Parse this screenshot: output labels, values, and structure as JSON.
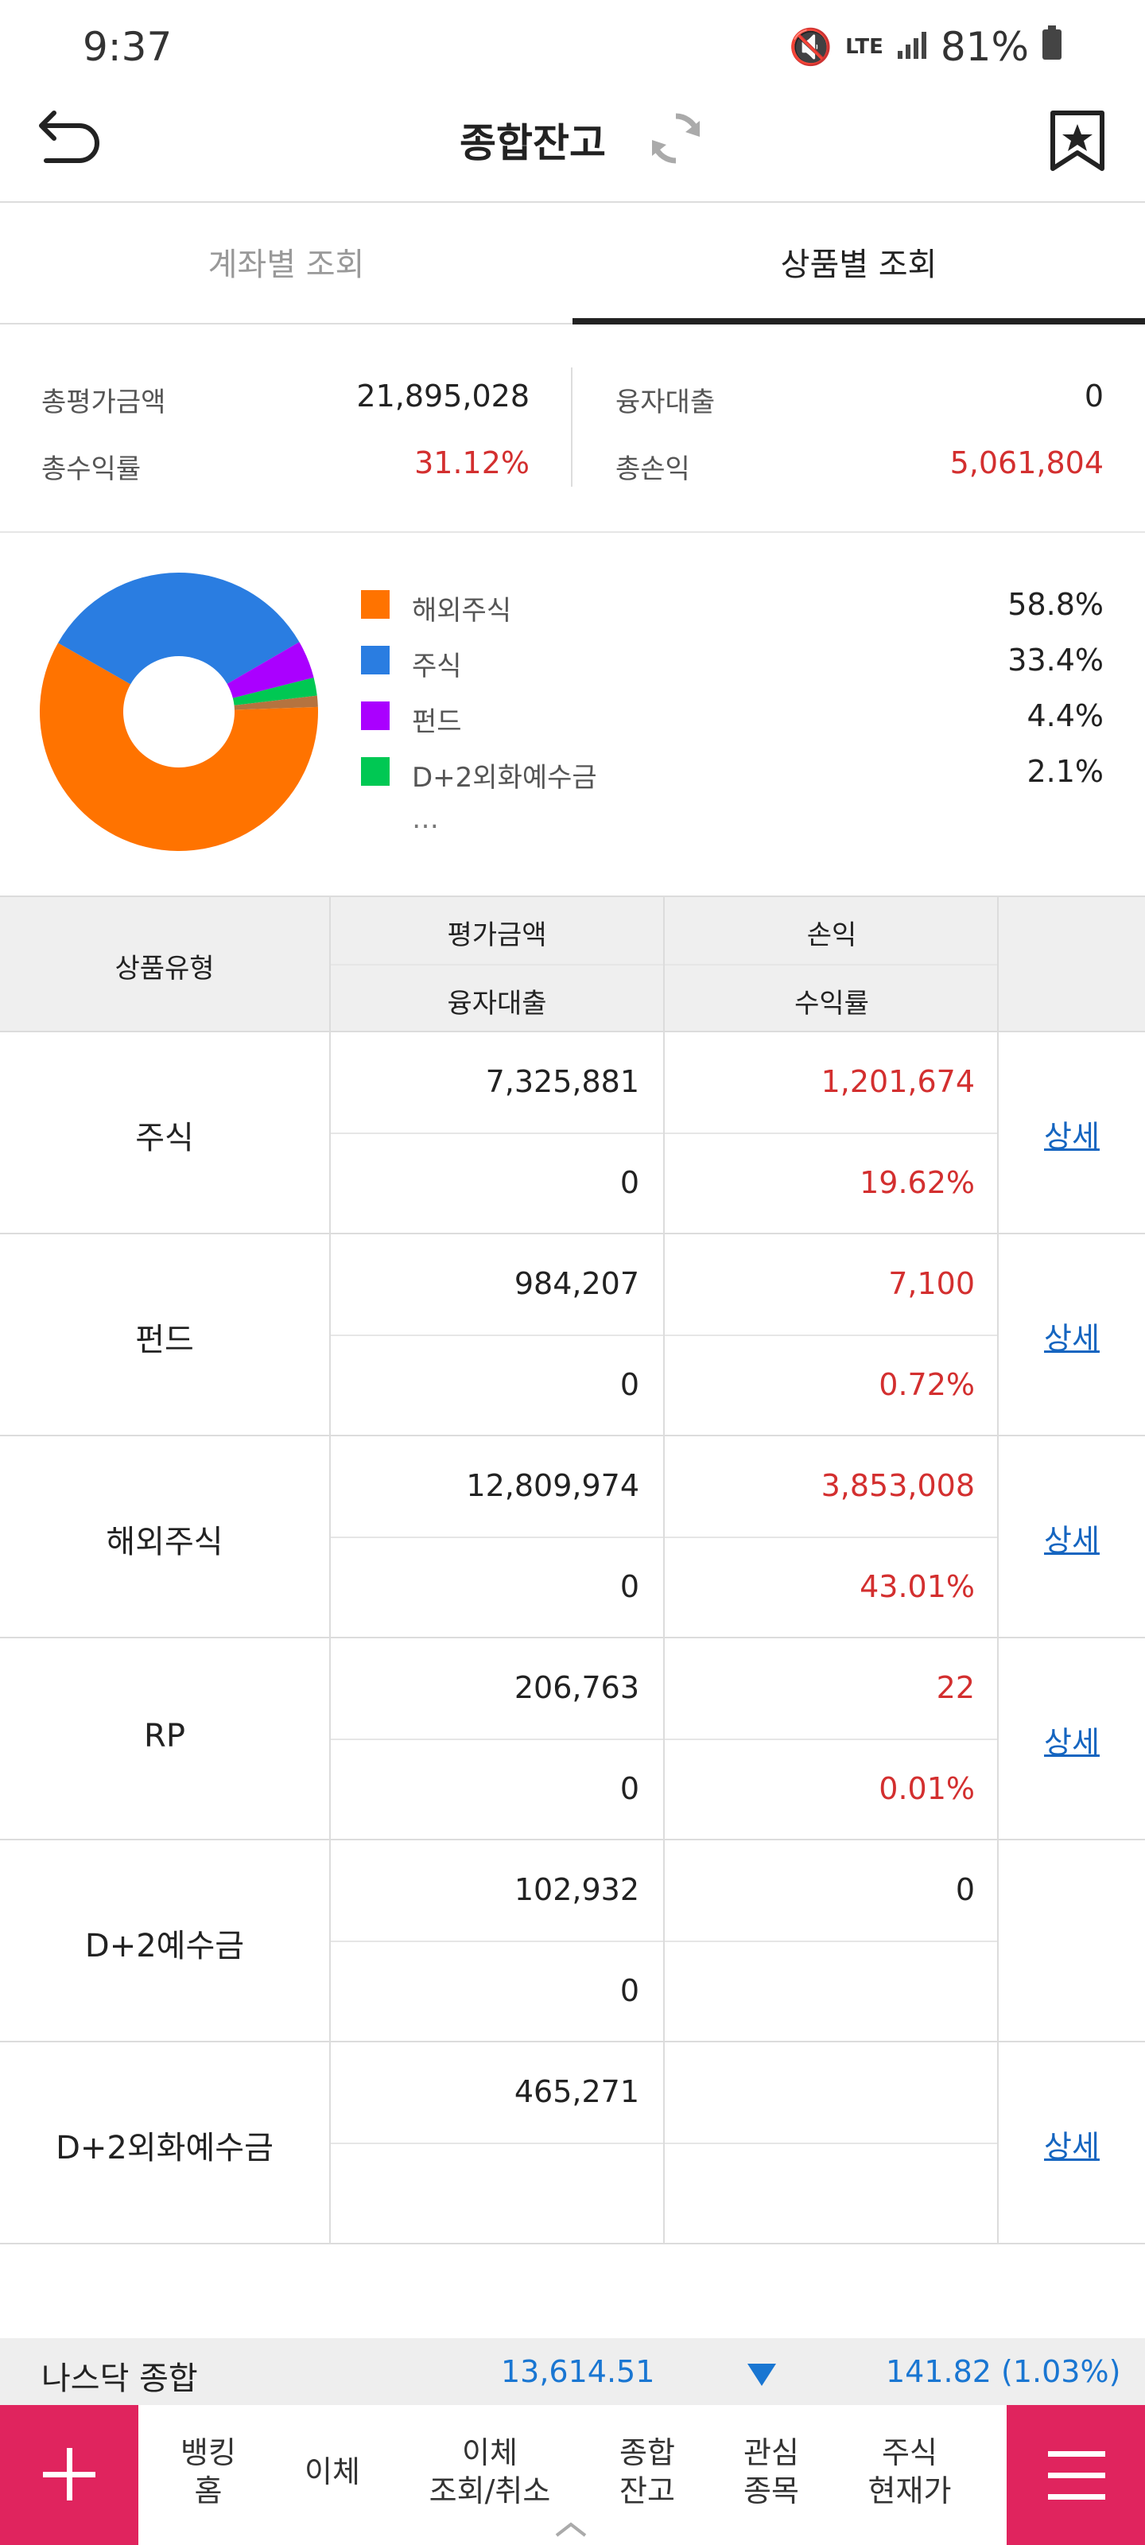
{
  "status": {
    "time": "9:37",
    "battery": "81%",
    "network": "LTE"
  },
  "header": {
    "title": "종합잔고"
  },
  "tabs": [
    {
      "label": "계좌별 조회"
    },
    {
      "label": "상품별 조회"
    }
  ],
  "summary": {
    "total_eval_label": "총평가금액",
    "total_eval_value": "21,895,028",
    "loan_label": "융자대출",
    "loan_value": "0",
    "total_return_label": "총수익률",
    "total_return_value": "31.12%",
    "total_pl_label": "총손익",
    "total_pl_value": "5,061,804"
  },
  "chart_data": {
    "type": "pie",
    "categories": [
      "해외주식",
      "주식",
      "펀드",
      "D+2외화예수금"
    ],
    "values": [
      58.8,
      33.4,
      4.4,
      2.1
    ],
    "colors": [
      "#ff7300",
      "#2a7de1",
      "#aa00ff",
      "#00c853"
    ],
    "value_labels": [
      "58.8%",
      "33.4%",
      "4.4%",
      "2.1%"
    ],
    "more_label": "…",
    "donut": true
  },
  "table": {
    "headers": {
      "type": "상품유형",
      "eval": "평가금액",
      "pl": "손익",
      "loan": "융자대출",
      "rate": "수익률"
    },
    "rows": [
      {
        "type": "주식",
        "eval": "7,325,881",
        "pl": "1,201,674",
        "loan": "0",
        "rate": "19.62%",
        "detail": "상세"
      },
      {
        "type": "펀드",
        "eval": "984,207",
        "pl": "7,100",
        "loan": "0",
        "rate": "0.72%",
        "detail": "상세"
      },
      {
        "type": "해외주식",
        "eval": "12,809,974",
        "pl": "3,853,008",
        "loan": "0",
        "rate": "43.01%",
        "detail": "상세"
      },
      {
        "type": "RP",
        "eval": "206,763",
        "pl": "22",
        "loan": "0",
        "rate": "0.01%",
        "detail": "상세"
      },
      {
        "type": "D+2예수금",
        "eval": "102,932",
        "pl": "0",
        "loan": "0",
        "rate": "",
        "detail": ""
      },
      {
        "type": "D+2외화예수금",
        "eval": "465,271",
        "pl": "",
        "loan": "",
        "rate": "",
        "detail": "상세"
      }
    ]
  },
  "ticker": {
    "name": "나스닥 종합",
    "value": "13,614.51",
    "change": "141.82 (1.03%)"
  },
  "bottom_nav": {
    "items": [
      {
        "line1": "뱅킹",
        "line2": "홈"
      },
      {
        "line1": "이체",
        "line2": ""
      },
      {
        "line1": "이체",
        "line2": "조회/취소"
      },
      {
        "line1": "종합",
        "line2": "잔고"
      },
      {
        "line1": "관심",
        "line2": "종목"
      },
      {
        "line1": "주식",
        "line2": "현재가"
      }
    ]
  }
}
